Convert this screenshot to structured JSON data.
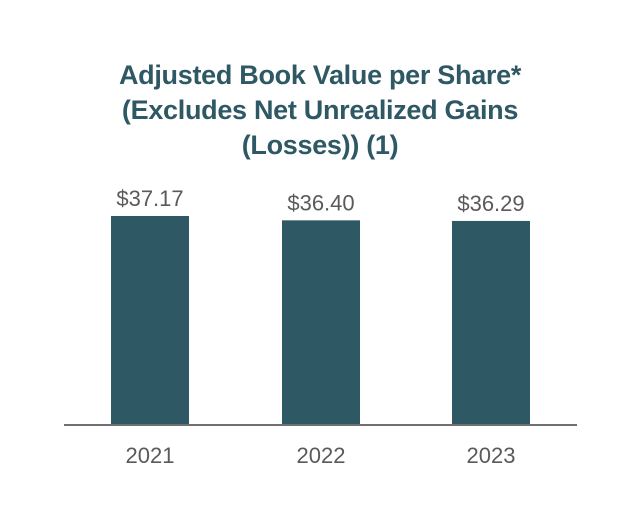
{
  "chart_data": {
    "type": "bar",
    "title_lines": [
      "Adjusted Book Value per Share*",
      "(Excludes Net Unrealized Gains",
      "(Losses)) (1)"
    ],
    "categories": [
      "2021",
      "2022",
      "2023"
    ],
    "values": [
      37.17,
      36.4,
      36.29
    ],
    "data_labels": [
      "$37.17",
      "$36.40",
      "$36.29"
    ],
    "xlabel": "",
    "ylabel": "",
    "ylim": [
      0,
      37.17
    ],
    "grid": false,
    "legend": "none",
    "colors": {
      "bar": "#2f5865",
      "axis": "#707070",
      "text": "#5a5a5a",
      "title": "#2f5865"
    }
  }
}
